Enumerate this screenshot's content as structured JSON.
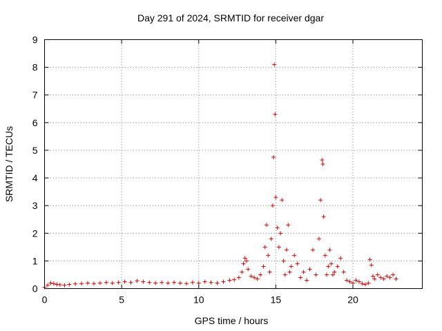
{
  "chart_data": {
    "type": "scatter",
    "title": "Day 291 of 2024, SRMTID for receiver dgar",
    "xlabel": "GPS time / hours",
    "ylabel": "SRMTID / TECUs",
    "xlim": [
      0,
      24.5
    ],
    "ylim": [
      0,
      9
    ],
    "xticks": [
      0,
      5,
      10,
      15,
      20
    ],
    "yticks": [
      0,
      1,
      2,
      3,
      4,
      5,
      6,
      7,
      8,
      9
    ],
    "grid": true,
    "marker": "+",
    "color": "#e00000",
    "series": [
      {
        "name": "SRMTID",
        "x": [
          0.0,
          0.2,
          0.4,
          0.6,
          0.8,
          1.0,
          1.3,
          1.6,
          2.0,
          2.4,
          2.8,
          3.2,
          3.6,
          4.0,
          4.4,
          4.8,
          5.2,
          5.6,
          6.0,
          6.4,
          6.8,
          7.2,
          7.6,
          8.0,
          8.4,
          8.8,
          9.2,
          9.6,
          10.0,
          10.4,
          10.8,
          11.2,
          11.6,
          12.0,
          12.3,
          12.6,
          12.8,
          12.9,
          13.0,
          13.1,
          13.2,
          13.4,
          13.6,
          13.8,
          14.0,
          14.2,
          14.3,
          14.4,
          14.5,
          14.6,
          14.7,
          14.8,
          14.85,
          14.9,
          14.95,
          15.0,
          15.1,
          15.2,
          15.3,
          15.4,
          15.5,
          15.6,
          15.7,
          15.8,
          15.9,
          16.0,
          16.2,
          16.4,
          16.6,
          16.8,
          17.0,
          17.2,
          17.4,
          17.6,
          17.8,
          17.9,
          18.0,
          18.05,
          18.1,
          18.2,
          18.3,
          18.4,
          18.5,
          18.6,
          18.7,
          18.8,
          19.0,
          19.2,
          19.4,
          19.6,
          19.8,
          20.0,
          20.2,
          20.4,
          20.6,
          20.8,
          21.0,
          21.1,
          21.2,
          21.3,
          21.4,
          21.6,
          21.8,
          22.0,
          22.2,
          22.4,
          22.6,
          22.8
        ],
        "y": [
          0.05,
          0.12,
          0.2,
          0.18,
          0.15,
          0.14,
          0.12,
          0.15,
          0.17,
          0.18,
          0.2,
          0.18,
          0.2,
          0.22,
          0.2,
          0.22,
          0.25,
          0.22,
          0.28,
          0.25,
          0.22,
          0.2,
          0.22,
          0.2,
          0.22,
          0.2,
          0.18,
          0.22,
          0.2,
          0.25,
          0.22,
          0.2,
          0.25,
          0.3,
          0.32,
          0.4,
          0.6,
          0.9,
          1.1,
          1.0,
          0.7,
          0.45,
          0.4,
          0.35,
          0.5,
          0.8,
          1.5,
          2.3,
          1.2,
          0.6,
          1.8,
          3.0,
          4.75,
          8.1,
          6.3,
          3.3,
          2.2,
          1.5,
          2.0,
          3.2,
          1.0,
          0.5,
          1.4,
          2.3,
          0.6,
          0.8,
          1.2,
          0.9,
          0.4,
          0.6,
          0.3,
          0.7,
          1.4,
          0.5,
          1.8,
          3.2,
          4.65,
          4.5,
          2.6,
          1.2,
          0.5,
          0.8,
          1.4,
          0.9,
          0.5,
          0.6,
          0.8,
          1.1,
          0.6,
          0.3,
          0.25,
          0.2,
          0.3,
          0.25,
          0.18,
          0.15,
          0.2,
          1.05,
          0.85,
          0.45,
          0.35,
          0.5,
          0.4,
          0.35,
          0.45,
          0.4,
          0.5,
          0.35
        ]
      }
    ]
  }
}
